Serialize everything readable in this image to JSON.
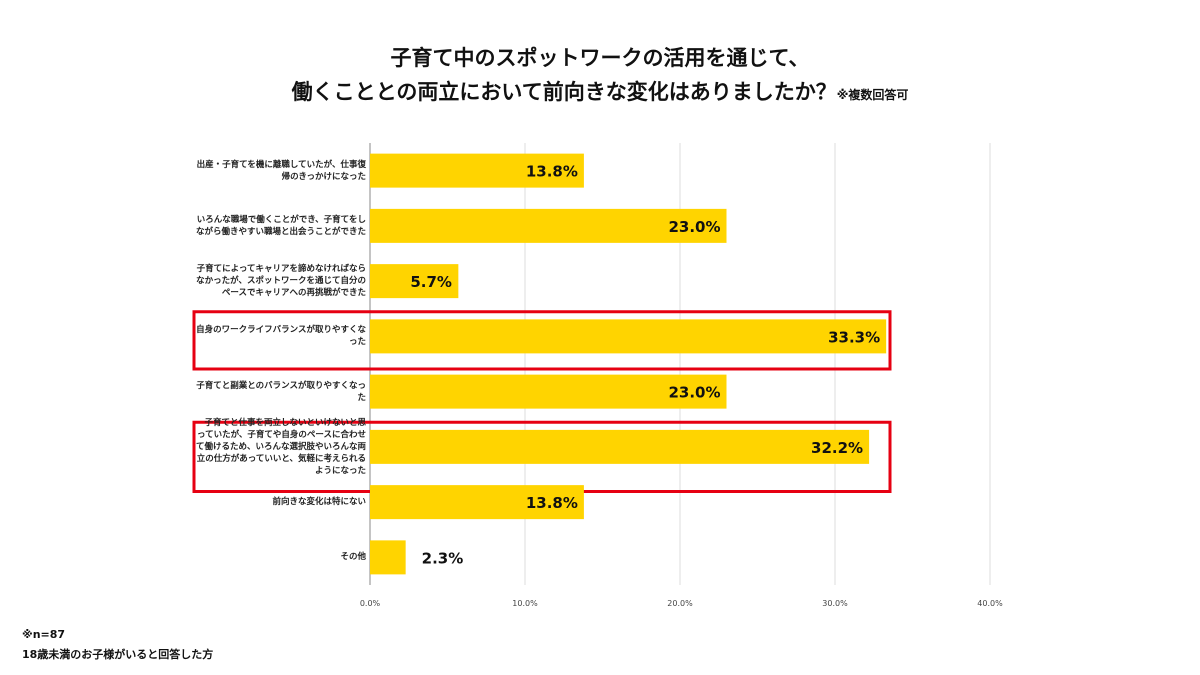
{
  "chart_data": {
    "type": "bar",
    "orientation": "horizontal",
    "title_line1": "子育て中のスポットワークの活用を通じて、",
    "title_line2": "働くこととの両立において前向きな変化はありましたか？",
    "title_note": "※複数回答可",
    "categories": [
      "出産・子育てを機に離職していたが、仕事復帰のきっかけになった",
      "いろんな職場で働くことができ、子育てをしながら働きやすい職場と出会うことができた",
      "子育てによってキャリアを諦めなければならなかったが、スポットワークを通じて自分のペースでキャリアへの再挑戦ができた",
      "自身のワークライフバランスが取りやすくなった",
      "子育てと副業とのバランスが取りやすくなった",
      "子育てと仕事を両立しないといけないと思っていたが、子育てや自身のペースに合わせて働けるため、いろんな選択肢やいろんな両立の仕方があっていいと、気軽に考えられるようになった",
      "前向きな変化は特にない",
      "その他"
    ],
    "values": [
      13.8,
      23.0,
      5.7,
      33.3,
      23.0,
      32.2,
      13.8,
      2.3
    ],
    "data_labels": [
      "13.8%",
      "23.0%",
      "5.7%",
      "33.3%",
      "23.0%",
      "32.2%",
      "13.8%",
      "2.3%"
    ],
    "highlighted": [
      3,
      5
    ],
    "xlim": [
      0,
      40
    ],
    "xticks": [
      "0.0%",
      "10.0%",
      "20.0%",
      "30.0%",
      "40.0%"
    ],
    "grid": true,
    "bar_color": "#FFD400",
    "highlight_color": "#E60012"
  },
  "footnote": {
    "line1": "※n=87",
    "line2": "18歳未満のお子様がいると回答した方"
  }
}
